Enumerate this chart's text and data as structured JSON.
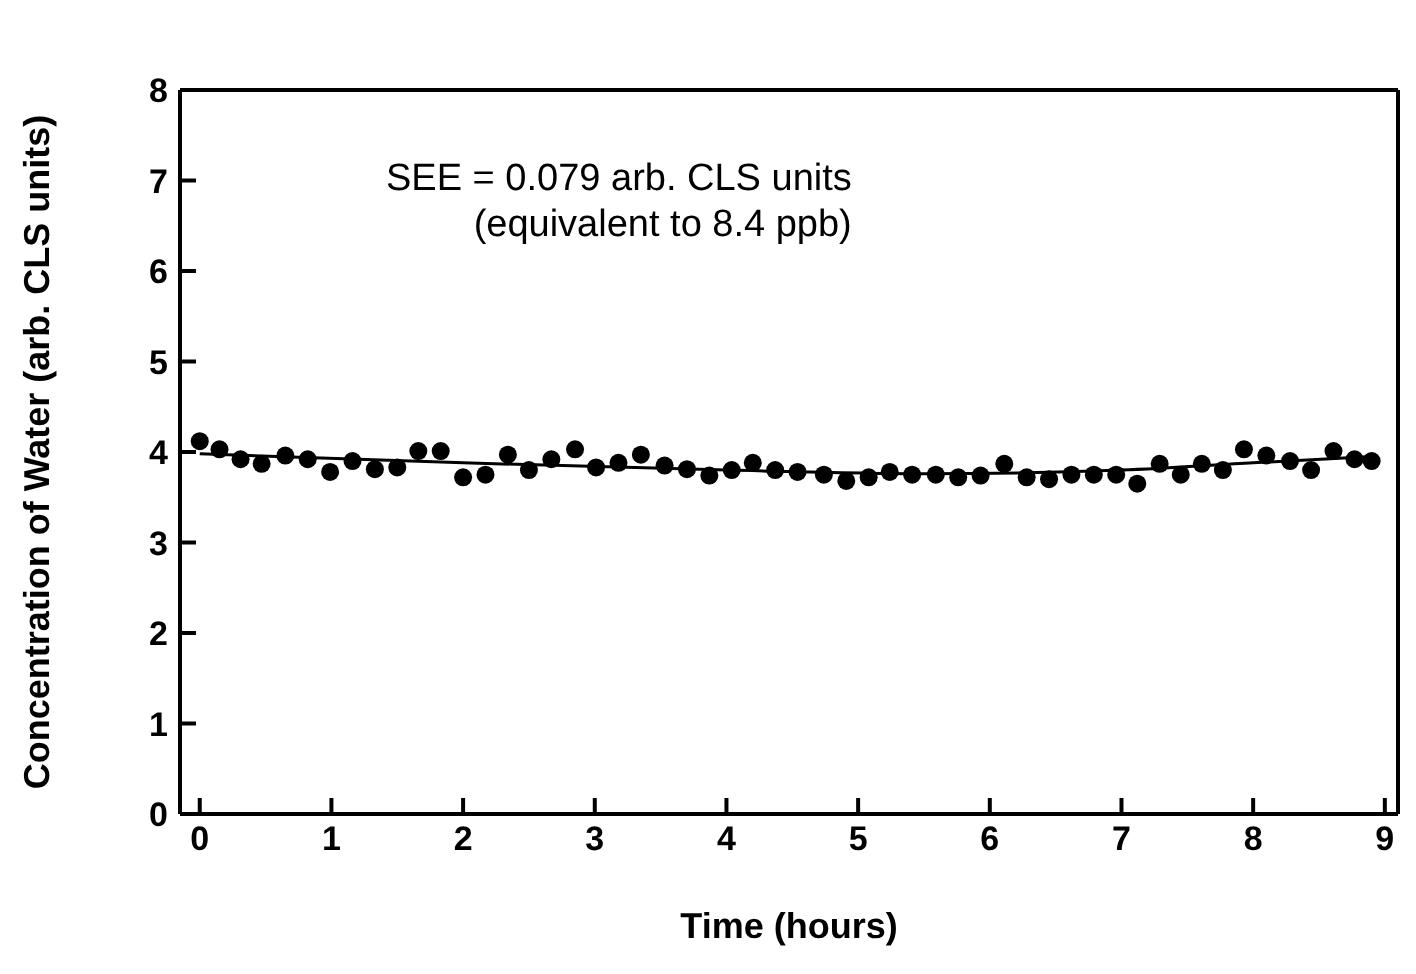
{
  "chart_data": {
    "type": "scatter",
    "xlabel": "Time (hours)",
    "ylabel": "Concentration of Water (arb. CLS units)",
    "annotations": [
      "SEE = 0.079 arb. CLS units",
      "(equivalent to 8.4 ppb)"
    ],
    "xlim": [
      -0.15,
      9.1
    ],
    "xticks": [
      0,
      1,
      2,
      3,
      4,
      5,
      6,
      7,
      8,
      9
    ],
    "ylim": [
      0,
      8
    ],
    "yticks": [
      0,
      1,
      2,
      3,
      4,
      5,
      6,
      7,
      8
    ],
    "grid": false,
    "legend": false,
    "marker": "circle",
    "series": [
      {
        "color": "#000000",
        "x": [
          0.0,
          0.15,
          0.31,
          0.47,
          0.65,
          0.82,
          0.99,
          1.16,
          1.33,
          1.5,
          1.66,
          1.83,
          2.0,
          2.17,
          2.34,
          2.5,
          2.67,
          2.85,
          3.01,
          3.18,
          3.35,
          3.53,
          3.7,
          3.87,
          4.04,
          4.2,
          4.37,
          4.54,
          4.74,
          4.91,
          5.08,
          5.24,
          5.41,
          5.59,
          5.76,
          5.93,
          6.11,
          6.28,
          6.45,
          6.62,
          6.79,
          6.96,
          7.12,
          7.29,
          7.45,
          7.61,
          7.77,
          7.93,
          8.1,
          8.28,
          8.44,
          8.61,
          8.77,
          8.9
        ],
        "values": [
          4.12,
          4.03,
          3.92,
          3.87,
          3.96,
          3.92,
          3.78,
          3.9,
          3.81,
          3.83,
          4.01,
          4.01,
          3.72,
          3.75,
          3.97,
          3.8,
          3.92,
          4.03,
          3.83,
          3.88,
          3.97,
          3.85,
          3.81,
          3.74,
          3.8,
          3.88,
          3.8,
          3.78,
          3.75,
          3.68,
          3.72,
          3.78,
          3.75,
          3.75,
          3.72,
          3.74,
          3.87,
          3.72,
          3.7,
          3.75,
          3.75,
          3.75,
          3.65,
          3.87,
          3.75,
          3.87,
          3.8,
          4.03,
          3.96,
          3.9,
          3.8,
          4.01,
          3.92,
          3.9
        ]
      },
      {
        "type": "line",
        "color": "#000000",
        "marker": "none",
        "x": [
          0,
          2,
          4,
          5.5,
          7,
          8,
          8.9
        ],
        "values": [
          3.98,
          3.88,
          3.8,
          3.76,
          3.8,
          3.88,
          3.95
        ]
      }
    ]
  }
}
